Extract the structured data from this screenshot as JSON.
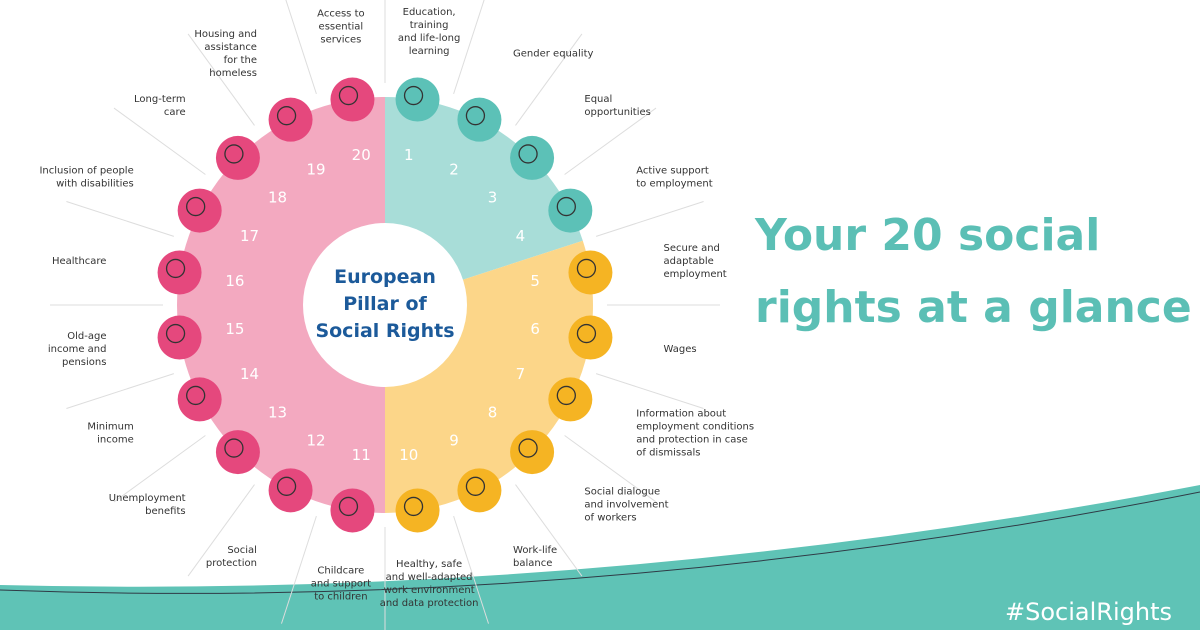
{
  "center_title": [
    "European",
    "Pillar of",
    "Social Rights"
  ],
  "headline": [
    "Your 20 social",
    "rights at a glance"
  ],
  "hashtag": "#SocialRights",
  "rights": [
    {
      "number": 1,
      "label": [
        "Education,",
        "training",
        "and life-long",
        "learning"
      ]
    },
    {
      "number": 2,
      "label": [
        "Gender equality"
      ]
    },
    {
      "number": 3,
      "label": [
        "Equal",
        "opportunities"
      ]
    },
    {
      "number": 4,
      "label": [
        "Active support",
        "to employment"
      ]
    },
    {
      "number": 5,
      "label": [
        "Secure and",
        "adaptable",
        "employment"
      ]
    },
    {
      "number": 6,
      "label": [
        "Wages"
      ]
    },
    {
      "number": 7,
      "label": [
        "Information about",
        "employment conditions",
        "and protection in case",
        "of dismissals"
      ]
    },
    {
      "number": 8,
      "label": [
        "Social dialogue",
        "and involvement",
        "of workers"
      ]
    },
    {
      "number": 9,
      "label": [
        "Work-life",
        "balance"
      ]
    },
    {
      "number": 10,
      "label": [
        "Healthy, safe",
        "and well-adapted",
        "work environment",
        "and data protection"
      ]
    },
    {
      "number": 11,
      "label": [
        "Childcare",
        "and support",
        "to children"
      ]
    },
    {
      "number": 12,
      "label": [
        "Social",
        "protection"
      ]
    },
    {
      "number": 13,
      "label": [
        "Unemployment",
        "benefits"
      ]
    },
    {
      "number": 14,
      "label": [
        "Minimum",
        "income"
      ]
    },
    {
      "number": 15,
      "label": [
        "Old-age",
        "income and",
        "pensions"
      ]
    },
    {
      "number": 16,
      "label": [
        "Healthcare"
      ]
    },
    {
      "number": 17,
      "label": [
        "Inclusion of people",
        "with disabilities"
      ]
    },
    {
      "number": 18,
      "label": [
        "Long-term",
        "care"
      ]
    },
    {
      "number": 19,
      "label": [
        "Housing and",
        "assistance",
        "for the",
        "homeless"
      ]
    },
    {
      "number": 20,
      "label": [
        "Access to",
        "essential",
        "services"
      ]
    }
  ]
}
